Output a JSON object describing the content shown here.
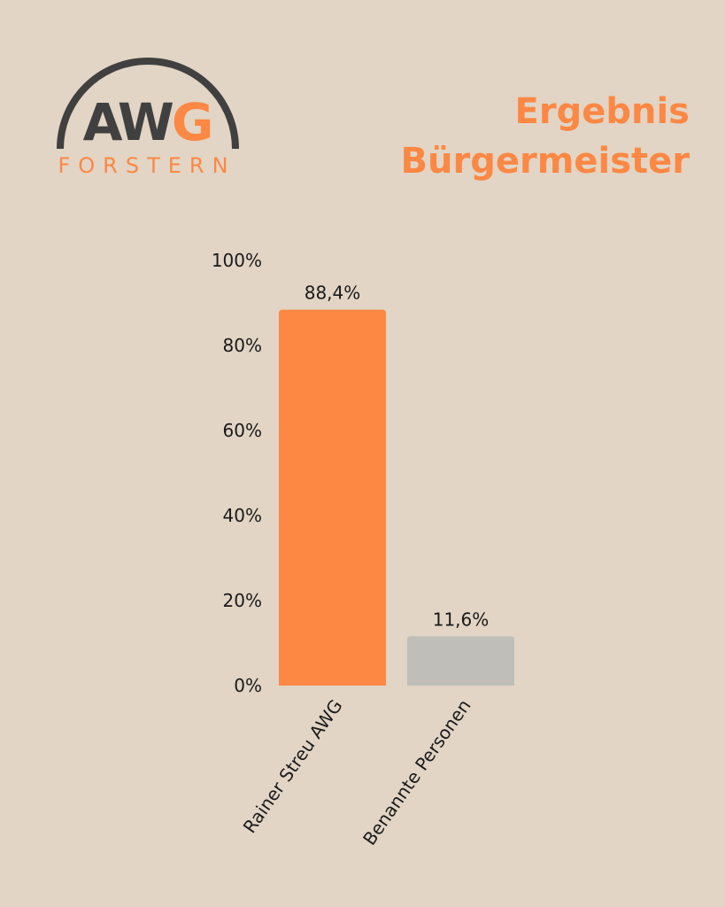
{
  "logo": {
    "text_main": "AW",
    "text_accent": "G",
    "subtitle": "FORSTERN"
  },
  "title": {
    "line1": "Ergebnis",
    "line2": "Bürgermeister"
  },
  "colors": {
    "background": "#e2d5c5",
    "accent": "#fc8844",
    "secondary_bar": "#bfbeb9",
    "logo_dark": "#404040",
    "text": "#1a1a1a"
  },
  "chart_data": {
    "type": "bar",
    "categories": [
      "Rainer Streu AWG",
      "Benannte Personen"
    ],
    "values": [
      88.4,
      11.6
    ],
    "data_labels": [
      "88,4%",
      "11,6%"
    ],
    "bar_colors": [
      "#fc8844",
      "#bfbeb9"
    ],
    "ylim": [
      0,
      100
    ],
    "yticks": [
      0,
      20,
      40,
      60,
      80,
      100
    ],
    "ytick_labels": [
      "0%",
      "20%",
      "40%",
      "60%",
      "80%",
      "100%"
    ],
    "grid": false,
    "xlabel": "",
    "ylabel": "",
    "title": ""
  }
}
